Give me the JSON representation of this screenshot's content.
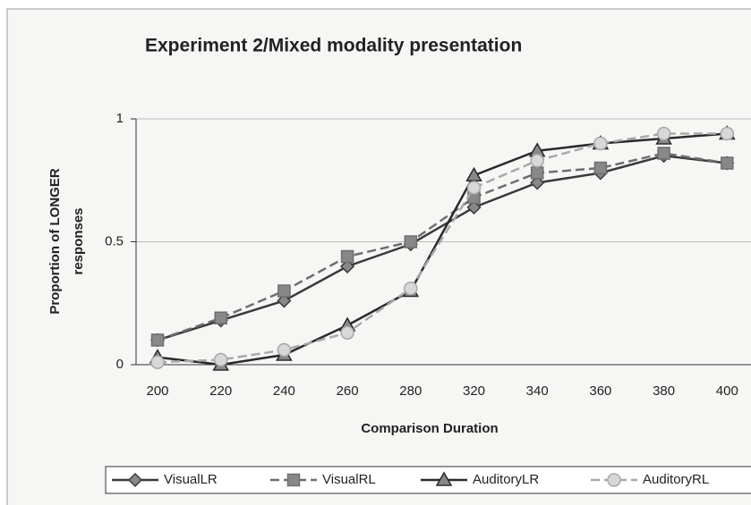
{
  "chart_data": {
    "type": "line",
    "title": "Experiment 2/Mixed modality presentation",
    "x_label": "Comparison Duration",
    "y_label": [
      "Proportion of LONGER",
      "responses"
    ],
    "categories": [
      "200",
      "220",
      "240",
      "260",
      "280",
      "320",
      "340",
      "360",
      "380",
      "400"
    ],
    "ylim": [
      0,
      1
    ],
    "yticks": [
      0,
      0.5,
      1
    ],
    "grid": true,
    "legend": "bottom",
    "series": [
      {
        "name": "VisualLR",
        "color": "#3a3a3a",
        "marker": "diamond",
        "dash": false,
        "values": [
          0.1,
          0.18,
          0.26,
          0.4,
          0.49,
          0.64,
          0.74,
          0.78,
          0.85,
          0.82
        ]
      },
      {
        "name": "VisualRL",
        "color": "#6e6e6e",
        "marker": "square",
        "dash": true,
        "values": [
          0.1,
          0.19,
          0.3,
          0.44,
          0.5,
          0.68,
          0.78,
          0.8,
          0.86,
          0.82
        ]
      },
      {
        "name": "AuditoryLR",
        "color": "#2a2a2a",
        "marker": "triangle",
        "dash": false,
        "values": [
          0.03,
          0.0,
          0.04,
          0.16,
          0.3,
          0.77,
          0.87,
          0.9,
          0.92,
          0.94
        ]
      },
      {
        "name": "AuditoryRL",
        "color": "#a8a8a8",
        "marker": "circle",
        "dash": true,
        "values": [
          0.01,
          0.02,
          0.06,
          0.13,
          0.31,
          0.72,
          0.83,
          0.9,
          0.94,
          0.94
        ]
      }
    ]
  }
}
